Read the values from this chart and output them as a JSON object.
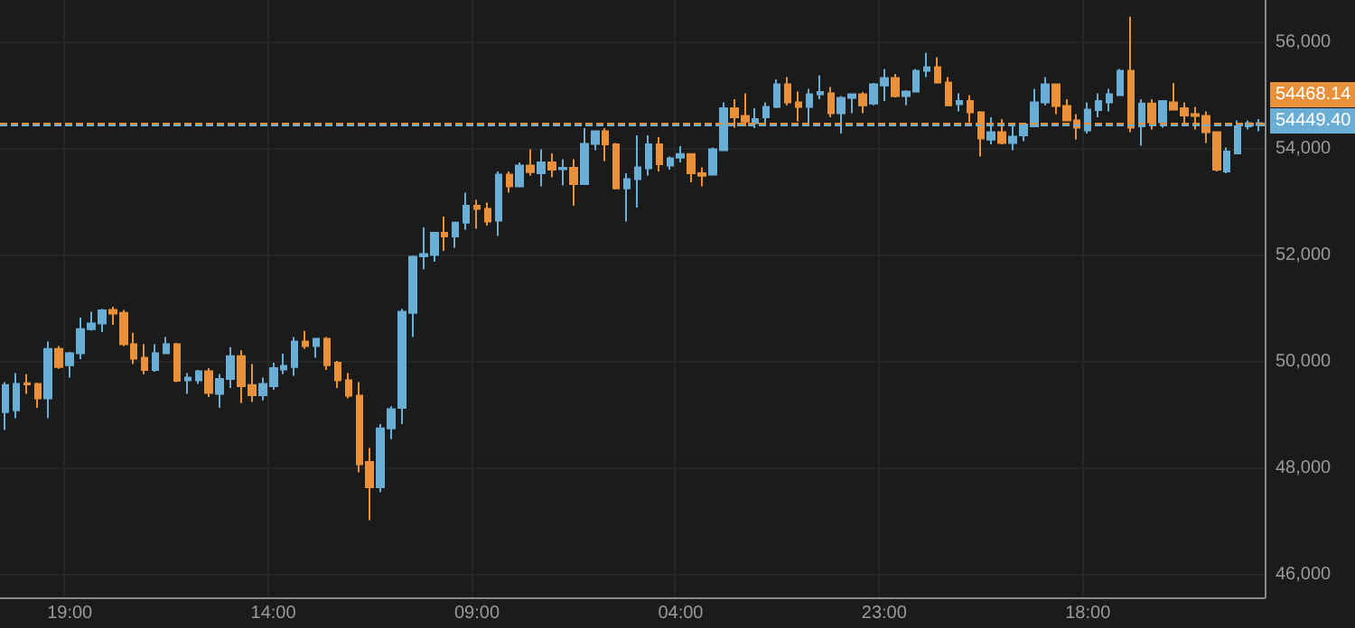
{
  "chart_data": {
    "type": "candlestick",
    "categories": [
      null,
      null,
      null,
      null,
      null,
      null,
      "19:00",
      null,
      null,
      null,
      null,
      null,
      null,
      null,
      null,
      null,
      null,
      null,
      null,
      null,
      null,
      null,
      null,
      null,
      null,
      "14:00",
      null,
      null,
      null,
      null,
      null,
      null,
      null,
      null,
      null,
      null,
      null,
      null,
      null,
      null,
      null,
      null,
      null,
      null,
      "09:00",
      null,
      null,
      null,
      null,
      null,
      null,
      null,
      null,
      null,
      null,
      null,
      null,
      null,
      null,
      null,
      null,
      null,
      null,
      "04:00",
      null,
      null,
      null,
      null,
      null,
      null,
      null,
      null,
      null,
      null,
      null,
      null,
      null,
      null,
      null,
      null,
      null,
      null,
      "23:00",
      null,
      null,
      null,
      null,
      null,
      null,
      null,
      null,
      null,
      null,
      null,
      null,
      null,
      null,
      null,
      null,
      null,
      null,
      "18:00",
      null,
      null,
      null,
      null,
      null,
      null,
      null,
      null,
      null,
      null,
      null,
      null,
      null,
      null,
      null,
      null
    ],
    "ylim": [
      45570,
      56790
    ],
    "yticks": [
      {
        "value": 46000,
        "label": "46,000"
      },
      {
        "value": 48000,
        "label": "48,000"
      },
      {
        "value": 50000,
        "label": "50,000"
      },
      {
        "value": 52000,
        "label": "52,000"
      },
      {
        "value": 54000,
        "label": "54,000"
      },
      {
        "value": 56000,
        "label": "56,000"
      }
    ],
    "grid": true,
    "ohlc": [
      [
        49050,
        49613,
        48712,
        49559
      ],
      [
        49084,
        49783,
        48935,
        49579
      ],
      [
        49590,
        49762,
        49390,
        49570
      ],
      [
        49579,
        49600,
        49128,
        49308
      ],
      [
        49308,
        50373,
        48935,
        50237
      ],
      [
        50237,
        50291,
        49864,
        49898
      ],
      [
        49932,
        50180,
        49695,
        50156
      ],
      [
        50156,
        50824,
        50044,
        50610
      ],
      [
        50610,
        50935,
        50580,
        50712
      ],
      [
        50712,
        50990,
        50552,
        50959
      ],
      [
        50969,
        51027,
        50688,
        50902
      ],
      [
        50915,
        50969,
        50291,
        50325
      ],
      [
        50325,
        50542,
        49952,
        50054
      ],
      [
        50068,
        50325,
        49762,
        49840
      ],
      [
        49840,
        50325,
        49806,
        50156
      ],
      [
        50156,
        50461,
        50140,
        50325
      ],
      [
        50325,
        50350,
        49613,
        49637
      ],
      [
        49647,
        49783,
        49390,
        49695
      ],
      [
        49647,
        49840,
        49579,
        49817
      ],
      [
        49817,
        49874,
        49332,
        49410
      ],
      [
        49390,
        49762,
        49128,
        49671
      ],
      [
        49671,
        50271,
        49501,
        50101
      ],
      [
        50101,
        50210,
        49220,
        49535
      ],
      [
        49559,
        49952,
        49240,
        49366
      ],
      [
        49366,
        49695,
        49270,
        49579
      ],
      [
        49535,
        49976,
        49470,
        49874
      ],
      [
        49851,
        50146,
        49762,
        49918
      ],
      [
        49898,
        50461,
        49729,
        50373
      ],
      [
        50373,
        50576,
        50237,
        50291
      ],
      [
        50291,
        50427,
        50068,
        50427
      ],
      [
        50427,
        50461,
        49840,
        49932
      ],
      [
        49976,
        50010,
        49501,
        49647
      ],
      [
        49647,
        49783,
        49308,
        49356
      ],
      [
        49356,
        49613,
        47918,
        48068
      ],
      [
        48112,
        48373,
        47017,
        47637
      ],
      [
        47637,
        48823,
        47545,
        48745
      ],
      [
        48745,
        49160,
        48542,
        49105
      ],
      [
        49128,
        50990,
        48823,
        50935
      ],
      [
        50915,
        51990,
        50461,
        51966
      ],
      [
        51976,
        52518,
        51729,
        52020
      ],
      [
        52000,
        52430,
        51874,
        52417
      ],
      [
        52417,
        52722,
        52078,
        52349
      ],
      [
        52349,
        52620,
        52135,
        52610
      ],
      [
        52610,
        53173,
        52474,
        52925
      ],
      [
        52925,
        53037,
        52495,
        52868
      ],
      [
        52868,
        52983,
        52552,
        52630
      ],
      [
        52644,
        53569,
        52359,
        53512
      ],
      [
        53512,
        53569,
        53173,
        53288
      ],
      [
        53288,
        53739,
        53270,
        53681
      ],
      [
        53681,
        53986,
        53491,
        53559
      ],
      [
        53535,
        53986,
        53288,
        53739
      ],
      [
        53739,
        53908,
        53458,
        53603
      ],
      [
        53613,
        53797,
        53308,
        53637
      ],
      [
        53637,
        53800,
        52925,
        53332
      ],
      [
        53332,
        54383,
        53320,
        54088
      ],
      [
        54088,
        54340,
        53966,
        54325
      ],
      [
        54325,
        54383,
        53763,
        54078
      ],
      [
        54078,
        54102,
        53230,
        53254
      ],
      [
        53254,
        53535,
        52630,
        53424
      ],
      [
        53424,
        54247,
        52891,
        53647
      ],
      [
        53627,
        54247,
        53491,
        54078
      ],
      [
        54078,
        54213,
        53569,
        53705
      ],
      [
        53681,
        53851,
        53603,
        53817
      ],
      [
        53830,
        54044,
        53739,
        53898
      ],
      [
        53898,
        53900,
        53366,
        53535
      ],
      [
        53535,
        53647,
        53288,
        53491
      ],
      [
        53512,
        54020,
        53491,
        53986
      ],
      [
        53966,
        54868,
        53950,
        54756
      ],
      [
        54756,
        54925,
        54393,
        54586
      ],
      [
        54610,
        55037,
        54417,
        54508
      ],
      [
        54475,
        54756,
        54383,
        54552
      ],
      [
        54586,
        54868,
        54475,
        54780
      ],
      [
        54780,
        55298,
        54760,
        55207
      ],
      [
        55207,
        55342,
        54813,
        54868
      ],
      [
        54868,
        55071,
        54508,
        54780
      ],
      [
        54780,
        55119,
        54417,
        55017
      ],
      [
        55017,
        55376,
        54925,
        55061
      ],
      [
        55037,
        55153,
        54586,
        54664
      ],
      [
        54664,
        54983,
        54281,
        54949
      ],
      [
        54949,
        55037,
        54664,
        55017
      ],
      [
        55017,
        55061,
        54664,
        54813
      ],
      [
        54847,
        55230,
        54813,
        55207
      ],
      [
        55186,
        55492,
        54891,
        55322
      ],
      [
        55322,
        55400,
        54959,
        54983
      ],
      [
        54983,
        55095,
        54813,
        55071
      ],
      [
        55071,
        55492,
        55060,
        55458
      ],
      [
        55458,
        55797,
        55342,
        55526
      ],
      [
        55526,
        55715,
        55230,
        55241
      ],
      [
        55241,
        55342,
        54800,
        54813
      ],
      [
        54834,
        55037,
        54698,
        54891
      ],
      [
        54891,
        55003,
        54495,
        54678
      ],
      [
        54678,
        54700,
        53851,
        54190
      ],
      [
        54169,
        54586,
        54078,
        54305
      ],
      [
        54305,
        54552,
        54078,
        54102
      ],
      [
        54102,
        54417,
        53966,
        54224
      ],
      [
        54247,
        54460,
        54136,
        54451
      ],
      [
        54417,
        55119,
        54400,
        54868
      ],
      [
        54868,
        55342,
        54813,
        55207
      ],
      [
        55207,
        55220,
        54644,
        54800
      ],
      [
        54800,
        54925,
        54520,
        54529
      ],
      [
        54529,
        54644,
        54169,
        54393
      ],
      [
        54339,
        54868,
        54281,
        54732
      ],
      [
        54722,
        55037,
        54586,
        54891
      ],
      [
        54868,
        55119,
        54698,
        55017
      ],
      [
        55003,
        55492,
        54983,
        55458
      ],
      [
        55458,
        56475,
        54305,
        54393
      ],
      [
        54417,
        54925,
        54054,
        54847
      ],
      [
        54847,
        54925,
        54359,
        54495
      ],
      [
        54495,
        54900,
        54393,
        54891
      ],
      [
        54868,
        55230,
        54720,
        54732
      ],
      [
        54756,
        54868,
        54475,
        54620
      ],
      [
        54644,
        54780,
        54359,
        54610
      ],
      [
        54610,
        54698,
        54102,
        54305
      ],
      [
        54305,
        54320,
        53569,
        53603
      ],
      [
        53569,
        54020,
        53535,
        53942
      ],
      [
        53908,
        54529,
        53900,
        54417
      ],
      [
        54417,
        54529,
        54359,
        54475
      ],
      [
        54441,
        54552,
        54325,
        54475
      ]
    ],
    "colors": [
      "#6aaed6",
      "#6aaed6",
      "#e8913a",
      "#e8913a",
      "#6aaed6",
      "#e8913a",
      "#6aaed6",
      "#6aaed6",
      "#6aaed6",
      "#6aaed6",
      "#e8913a",
      "#e8913a",
      "#e8913a",
      "#e8913a",
      "#6aaed6",
      "#6aaed6",
      "#e8913a",
      "#6aaed6",
      "#6aaed6",
      "#e8913a",
      "#6aaed6",
      "#6aaed6",
      "#e8913a",
      "#e8913a",
      "#6aaed6",
      "#6aaed6",
      "#6aaed6",
      "#6aaed6",
      "#e8913a",
      "#6aaed6",
      "#e8913a",
      "#e8913a",
      "#e8913a",
      "#e8913a",
      "#e8913a",
      "#6aaed6",
      "#6aaed6",
      "#6aaed6",
      "#6aaed6",
      "#6aaed6",
      "#6aaed6",
      "#e8913a",
      "#6aaed6",
      "#6aaed6",
      "#e8913a",
      "#e8913a",
      "#6aaed6",
      "#e8913a",
      "#6aaed6",
      "#e8913a",
      "#6aaed6",
      "#e8913a",
      "#6aaed6",
      "#e8913a",
      "#6aaed6",
      "#6aaed6",
      "#e8913a",
      "#e8913a",
      "#6aaed6",
      "#6aaed6",
      "#6aaed6",
      "#e8913a",
      "#6aaed6",
      "#6aaed6",
      "#e8913a",
      "#e8913a",
      "#6aaed6",
      "#6aaed6",
      "#e8913a",
      "#e8913a",
      "#6aaed6",
      "#6aaed6",
      "#6aaed6",
      "#e8913a",
      "#e8913a",
      "#6aaed6",
      "#6aaed6",
      "#e8913a",
      "#6aaed6",
      "#6aaed6",
      "#e8913a",
      "#6aaed6",
      "#6aaed6",
      "#e8913a",
      "#6aaed6",
      "#6aaed6",
      "#6aaed6",
      "#e8913a",
      "#e8913a",
      "#6aaed6",
      "#e8913a",
      "#e8913a",
      "#6aaed6",
      "#e8913a",
      "#6aaed6",
      "#6aaed6",
      "#6aaed6",
      "#6aaed6",
      "#e8913a",
      "#e8913a",
      "#e8913a",
      "#6aaed6",
      "#6aaed6",
      "#6aaed6",
      "#6aaed6",
      "#e8913a",
      "#6aaed6",
      "#e8913a",
      "#6aaed6",
      "#e8913a",
      "#e8913a",
      "#e8913a",
      "#e8913a",
      "#e8913a",
      "#6aaed6",
      "#6aaed6",
      "#6aaed6",
      "#6aaed6"
    ],
    "ref_lines": [
      {
        "axis": "y",
        "value": 54468.14,
        "label": "54468.14",
        "color": "#e8913a",
        "line_style": "dashed"
      },
      {
        "axis": "y",
        "value": 54449.4,
        "label": "54449.40",
        "color": "#6aaed6",
        "line_style": "dashed"
      }
    ]
  }
}
